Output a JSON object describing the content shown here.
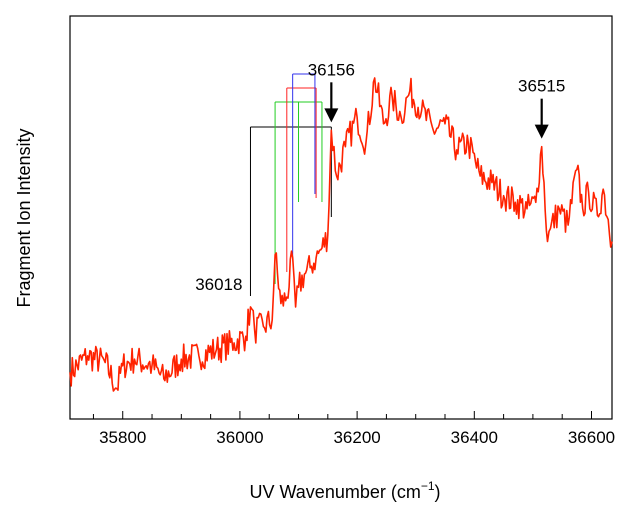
{
  "chart_data": {
    "type": "line",
    "xlabel": "UV Wavenumber (cm",
    "xlabel_sup": "−1",
    "xlabel_close": ")",
    "ylabel": "Fragment Ion Intensity",
    "xlim": [
      35710,
      36635
    ],
    "ylim": [
      0,
      1
    ],
    "xticks": [
      35800,
      36000,
      36200,
      36400,
      36600
    ],
    "grid": false,
    "series": [
      {
        "color": "#ff2200",
        "x": [
          35710,
          35740,
          35770,
          35790,
          35800,
          35820,
          35850,
          35870,
          35900,
          35930,
          35960,
          35990,
          36010,
          36018,
          36025,
          36040,
          36055,
          36060,
          36070,
          36080,
          36090,
          36095,
          36100,
          36110,
          36120,
          36130,
          36140,
          36150,
          36156,
          36165,
          36180,
          36200,
          36215,
          36230,
          36245,
          36260,
          36275,
          36290,
          36310,
          36330,
          36350,
          36370,
          36390,
          36410,
          36430,
          36450,
          36470,
          36490,
          36505,
          36515,
          36525,
          36530,
          36545,
          36560,
          36575,
          36585,
          36595,
          36610,
          36620,
          36635
        ],
        "y": [
          0.1,
          0.15,
          0.13,
          0.05,
          0.12,
          0.14,
          0.12,
          0.08,
          0.14,
          0.15,
          0.17,
          0.19,
          0.21,
          0.3,
          0.23,
          0.24,
          0.26,
          0.46,
          0.31,
          0.33,
          0.45,
          0.3,
          0.36,
          0.4,
          0.42,
          0.45,
          0.48,
          0.52,
          0.84,
          0.7,
          0.79,
          0.88,
          0.8,
          1.0,
          0.86,
          0.94,
          0.88,
          0.96,
          0.9,
          0.84,
          0.86,
          0.78,
          0.8,
          0.7,
          0.68,
          0.64,
          0.62,
          0.6,
          0.62,
          0.79,
          0.5,
          0.54,
          0.6,
          0.55,
          0.72,
          0.6,
          0.65,
          0.58,
          0.66,
          0.5
        ]
      }
    ],
    "markers": [
      {
        "label": "36156",
        "x": 36156,
        "y": 0.84
      },
      {
        "label": "36515",
        "x": 36515,
        "y": 0.79
      }
    ],
    "annotation_label": "36018",
    "assignment_combs": [
      {
        "color": "#000000",
        "base": 36018,
        "ends": [
          36156
        ]
      },
      {
        "color": "#22cc22",
        "base": 36060,
        "ends": [
          36100,
          36140
        ]
      },
      {
        "color": "#ff2222",
        "base": 36080,
        "ends": [
          36130
        ]
      },
      {
        "color": "#3333ee",
        "base": 36090,
        "ends": [
          36128
        ]
      }
    ]
  }
}
